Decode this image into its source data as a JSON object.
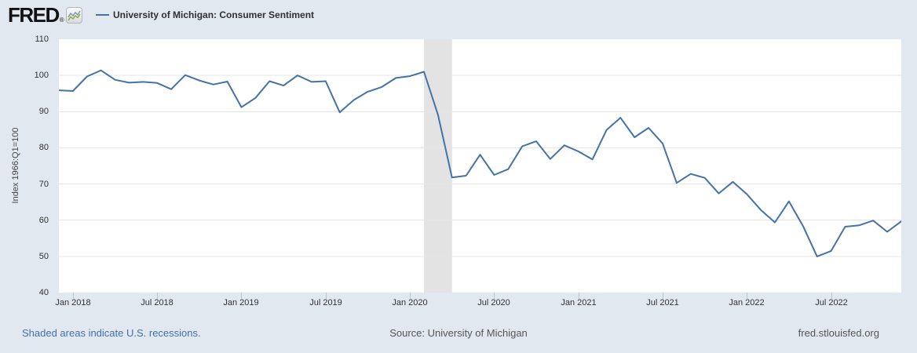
{
  "header": {
    "logo_text": "FRED",
    "registered_mark": "®",
    "series_label": "University of Michigan: Consumer Sentiment"
  },
  "axes": {
    "y_title": "Index 1966:Q1=100",
    "y_ticks": [
      110,
      100,
      90,
      80,
      70,
      60,
      50,
      40
    ],
    "x_ticks": [
      "Jan 2018",
      "Jul 2018",
      "Jan 2019",
      "Jul 2019",
      "Jan 2020",
      "Jul 2020",
      "Jan 2021",
      "Jul 2021",
      "Jan 2022",
      "Jul 2022"
    ]
  },
  "footer": {
    "recession_note": "Shaded areas indicate U.S. recessions.",
    "source": "Source: University of Michigan",
    "site": "fred.stlouisfed.org"
  },
  "colors": {
    "background": "#e2e8f0",
    "plot_background": "#ffffff",
    "line": "#4572a7",
    "gridline": "#e6e6e6",
    "recession_band": "#e3e3e3",
    "tick_mark": "#b8c6d2",
    "axis_text": "#333333",
    "link_blue": "#4170ac",
    "footer_gray": "#565656",
    "icon_green": "#86a940",
    "icon_blue": "#7d95ad"
  },
  "chart_data": {
    "type": "line",
    "title": "University of Michigan: Consumer Sentiment",
    "xlabel": "",
    "ylabel": "Index 1966:Q1=100",
    "ylim": [
      40,
      110
    ],
    "frequency": "monthly",
    "grid": true,
    "legend_position": "top-left",
    "x": [
      "2017-12",
      "2018-01",
      "2018-02",
      "2018-03",
      "2018-04",
      "2018-05",
      "2018-06",
      "2018-07",
      "2018-08",
      "2018-09",
      "2018-10",
      "2018-11",
      "2018-12",
      "2019-01",
      "2019-02",
      "2019-03",
      "2019-04",
      "2019-05",
      "2019-06",
      "2019-07",
      "2019-08",
      "2019-09",
      "2019-10",
      "2019-11",
      "2019-12",
      "2020-01",
      "2020-02",
      "2020-03",
      "2020-04",
      "2020-05",
      "2020-06",
      "2020-07",
      "2020-08",
      "2020-09",
      "2020-10",
      "2020-11",
      "2020-12",
      "2021-01",
      "2021-02",
      "2021-03",
      "2021-04",
      "2021-05",
      "2021-06",
      "2021-07",
      "2021-08",
      "2021-09",
      "2021-10",
      "2021-11",
      "2021-12",
      "2022-01",
      "2022-02",
      "2022-03",
      "2022-04",
      "2022-05",
      "2022-06",
      "2022-07",
      "2022-08",
      "2022-09",
      "2022-10",
      "2022-11",
      "2022-12"
    ],
    "values": [
      95.9,
      95.7,
      99.7,
      101.4,
      98.8,
      98.0,
      98.2,
      97.9,
      96.2,
      100.1,
      98.6,
      97.5,
      98.3,
      91.2,
      93.8,
      98.4,
      97.2,
      100.0,
      98.2,
      98.4,
      89.8,
      93.2,
      95.5,
      96.8,
      99.3,
      99.8,
      101.0,
      89.1,
      71.8,
      72.3,
      78.1,
      72.5,
      74.1,
      80.4,
      81.8,
      76.9,
      80.7,
      79.0,
      76.8,
      84.9,
      88.3,
      82.9,
      85.5,
      81.2,
      70.3,
      72.8,
      71.7,
      67.4,
      70.6,
      67.2,
      62.8,
      59.4,
      65.2,
      58.4,
      50.0,
      51.5,
      58.2,
      58.6,
      59.9,
      56.8,
      59.7
    ],
    "recession_bands": [
      {
        "from": "2020-02",
        "to": "2020-04"
      }
    ]
  }
}
